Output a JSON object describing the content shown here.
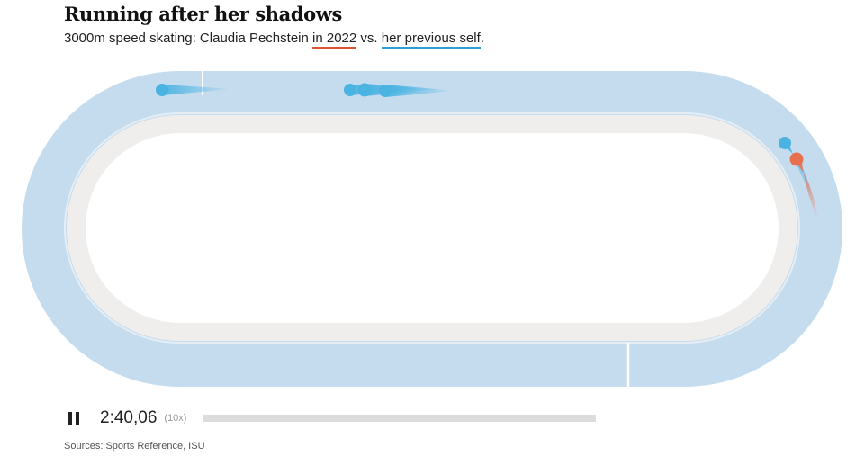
{
  "header": {
    "title": "Running after her shadows",
    "subtitle_prefix": "3000m speed skating: Claudia Pechstein ",
    "subtitle_hl1": "in 2022",
    "subtitle_mid": " vs. ",
    "subtitle_hl2": "her previous self",
    "subtitle_suffix": "."
  },
  "colors": {
    "ice": "#c5dcee",
    "infield_ring": "#efeeed",
    "infield": "#ffffff",
    "skater_2022": "#e8704f",
    "skater_previous": "#4ab3e2",
    "underline_2022": "#d9542f",
    "underline_previous": "#2ba0d4"
  },
  "skaters": [
    {
      "group": "previous",
      "label": "shadow-skater-1"
    },
    {
      "group": "previous",
      "label": "shadow-skater-2"
    },
    {
      "group": "previous",
      "label": "shadow-skater-3"
    },
    {
      "group": "previous",
      "label": "shadow-skater-4"
    },
    {
      "group": "previous",
      "label": "shadow-skater-5"
    },
    {
      "group": "2022",
      "label": "current-skater"
    }
  ],
  "player": {
    "time": "2:40,06",
    "speed": "(10x)",
    "progress": 0.0,
    "state": "playing",
    "pause_icon": "pause-icon"
  },
  "footer": {
    "sources": "Sources: Sports Reference, ISU"
  }
}
